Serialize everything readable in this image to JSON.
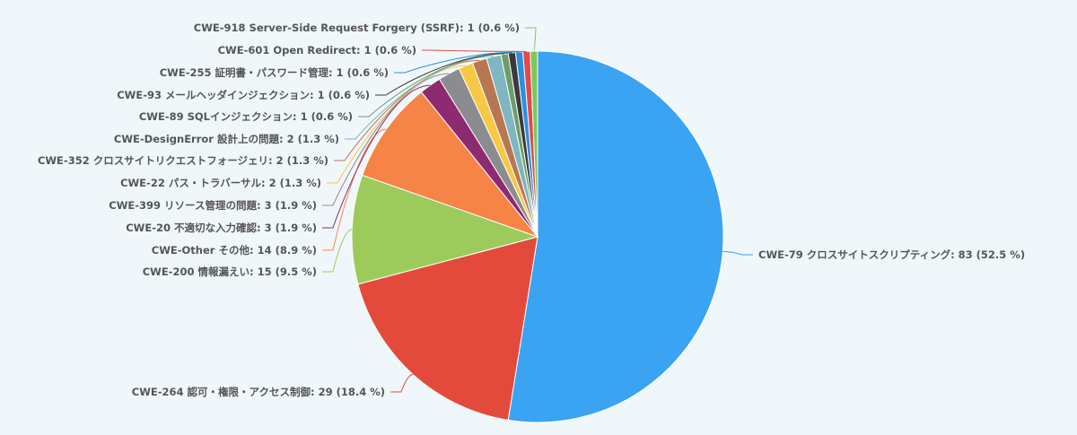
{
  "chart_data": {
    "type": "pie",
    "title": "",
    "slices": [
      {
        "label": "CWE-79 クロスサイトスクリプティング: 83 (52.5 %)",
        "value": 83,
        "color": "#3aa3f2"
      },
      {
        "label": "CWE-264 認可・権限・アクセス制御: 29 (18.4 %)",
        "value": 29,
        "color": "#e44a3b"
      },
      {
        "label": "CWE-200 情報漏えい: 15 (9.5 %)",
        "value": 15,
        "color": "#9ccb5c"
      },
      {
        "label": "CWE-Other その他: 14 (8.9 %)",
        "value": 14,
        "color": "#f58446"
      },
      {
        "label": "CWE-20 不適切な入力確認: 3 (1.9 %)",
        "value": 3,
        "color": "#8e2a70"
      },
      {
        "label": "CWE-399 リソース管理の問題: 3 (1.9 %)",
        "value": 3,
        "color": "#8b8c8f"
      },
      {
        "label": "CWE-22 パス・トラバーサル: 2 (1.3 %)",
        "value": 2,
        "color": "#f7c845"
      },
      {
        "label": "CWE-352 クロスサイトリクエストフォージェリ: 2 (1.3 %)",
        "value": 2,
        "color": "#b87752"
      },
      {
        "label": "CWE-DesignError 設計上の問題: 2 (1.3 %)",
        "value": 2,
        "color": "#7fb6bf"
      },
      {
        "label": "CWE-89 SQLインジェクション: 1 (0.6 %)",
        "value": 1,
        "color": "#6d9d6a"
      },
      {
        "label": "CWE-93 メールヘッダインジェクション: 1 (0.6 %)",
        "value": 1,
        "color": "#3a3a3a"
      },
      {
        "label": "CWE-255 証明書・パスワード管理: 1 (0.6 %)",
        "value": 1,
        "color": "#2e8fe0"
      },
      {
        "label": "CWE-601 Open Redirect: 1 (0.6 %)",
        "value": 1,
        "color": "#e34a4a"
      },
      {
        "label": "CWE-918 Server-Side Request Forgery (SSRF): 1 (0.6 %)",
        "value": 1,
        "color": "#80c75a"
      }
    ]
  }
}
